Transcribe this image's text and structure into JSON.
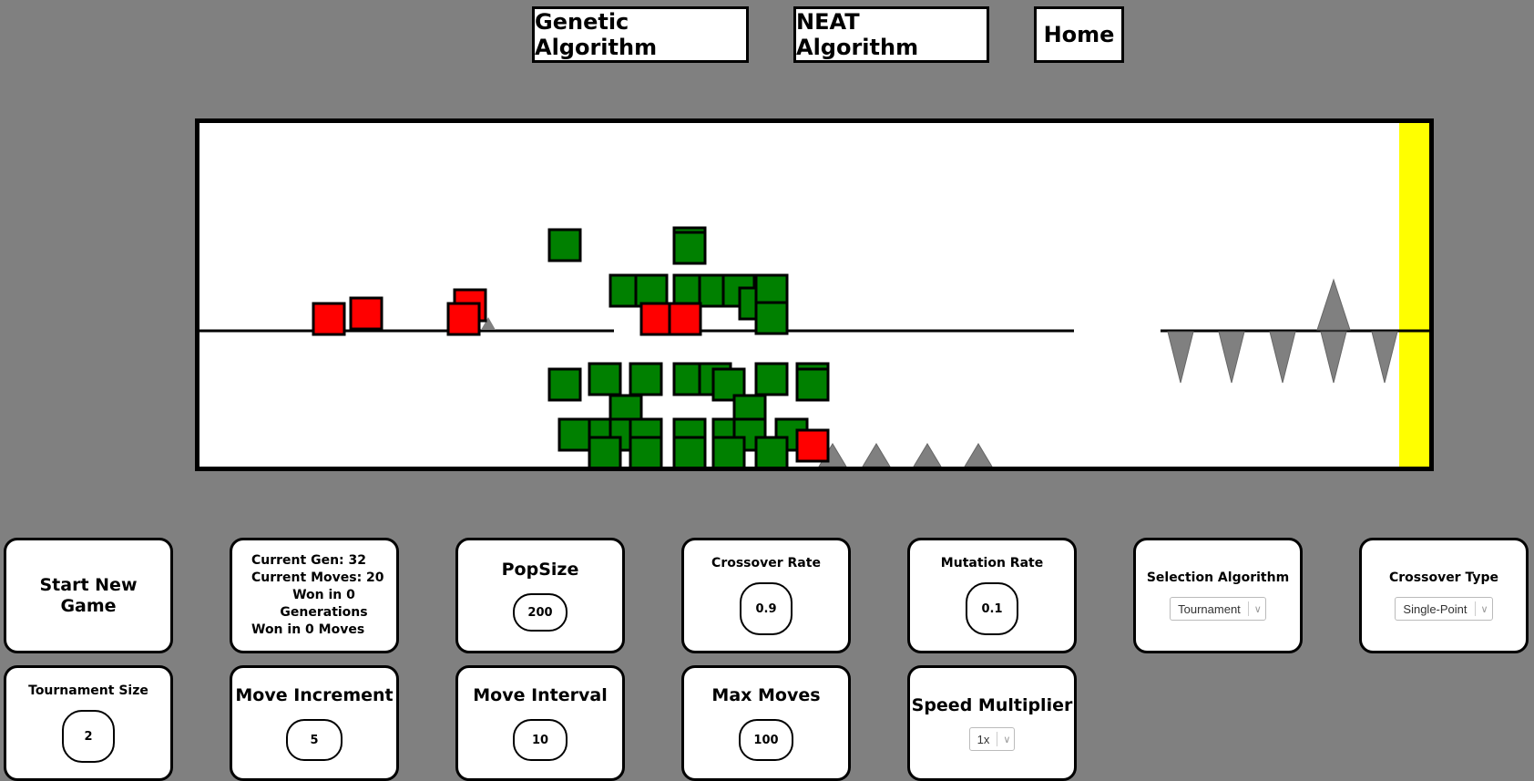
{
  "nav": {
    "genetic_label": "Genetic Algorithm",
    "neat_label": "NEAT Algorithm",
    "home_label": "Home"
  },
  "game": {
    "colors": {
      "background": "#ffffff",
      "ground": "#000000",
      "spike": "#808080",
      "goal": "#ffff00",
      "alive_agent": "#008000",
      "dead_agent": "#ff0000"
    },
    "goal_zone": "goal-flag-zone"
  },
  "controls": {
    "start_label": "Start New Game",
    "stats": {
      "current_gen": "Current Gen: 32",
      "current_moves": "Current Moves: 20",
      "won_gens": "Won in 0 Generations",
      "won_moves": "Won in 0 Moves"
    },
    "popsize": {
      "label": "PopSize",
      "value": "200"
    },
    "crossover_rate": {
      "label": "Crossover Rate",
      "value": "0.9"
    },
    "mutation_rate": {
      "label": "Mutation Rate",
      "value": "0.1"
    },
    "selection": {
      "label": "Selection Algorithm",
      "value": "Tournament"
    },
    "crossover_type": {
      "label": "Crossover Type",
      "value": "Single-Point"
    },
    "tournament_size": {
      "label": "Tournament Size",
      "value": "2"
    },
    "move_increment": {
      "label": "Move Increment",
      "value": "5"
    },
    "move_interval": {
      "label": "Move Interval",
      "value": "10"
    },
    "max_moves": {
      "label": "Max Moves",
      "value": "100"
    },
    "speed": {
      "label": "Speed Multiplier",
      "value": "1x"
    }
  }
}
